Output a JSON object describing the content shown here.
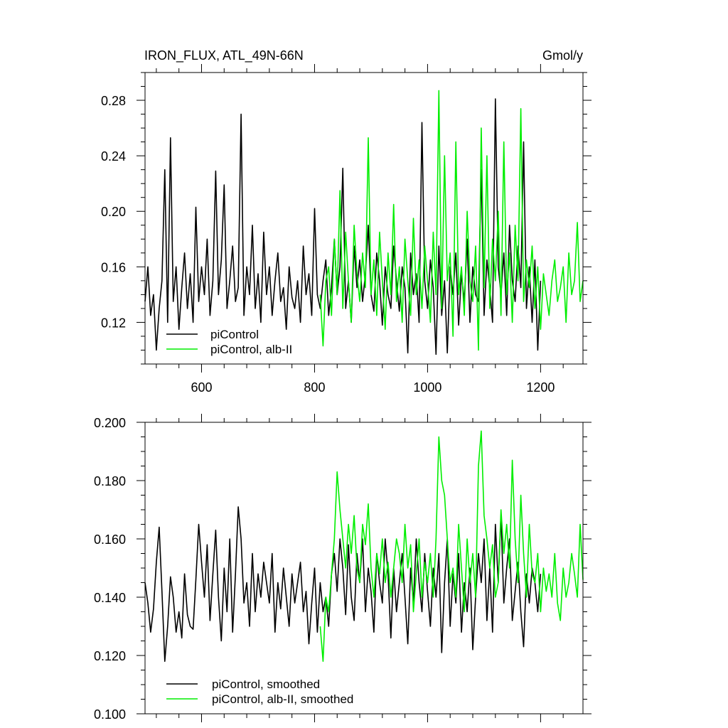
{
  "chart_data": [
    {
      "type": "line",
      "title": "IRON_FLUX, ATL_49N-66N",
      "unit": "Gmol/y",
      "xlim": [
        500,
        1275
      ],
      "ylim": [
        0.09,
        0.3
      ],
      "x_ticks": [
        600,
        800,
        1000,
        1200
      ],
      "x_tick_labels": [
        "600",
        "800",
        "1000",
        "1200"
      ],
      "y_ticks": [
        0.12,
        0.16,
        0.2,
        0.24,
        0.28
      ],
      "y_tick_labels": [
        "0.12",
        "0.16",
        "0.20",
        "0.24",
        "0.28"
      ],
      "legend_position": "bottom-left",
      "series": [
        {
          "name": "piControl",
          "color": "#000000",
          "x": [
            500,
            505,
            510,
            515,
            520,
            525,
            530,
            535,
            540,
            545,
            550,
            555,
            560,
            565,
            570,
            575,
            580,
            585,
            590,
            595,
            600,
            605,
            610,
            615,
            620,
            625,
            630,
            635,
            640,
            645,
            650,
            655,
            660,
            665,
            670,
            675,
            680,
            685,
            690,
            695,
            700,
            705,
            710,
            715,
            720,
            725,
            730,
            735,
            740,
            745,
            750,
            755,
            760,
            765,
            770,
            775,
            780,
            785,
            790,
            795,
            800,
            805,
            810,
            815,
            820,
            825,
            830,
            835,
            840,
            845,
            850,
            855,
            860,
            865,
            870,
            875,
            880,
            885,
            890,
            895,
            900,
            905,
            910,
            915,
            920,
            925,
            930,
            935,
            940,
            945,
            950,
            955,
            960,
            965,
            970,
            975,
            980,
            985,
            990,
            995,
            1000,
            1005,
            1010,
            1015,
            1020,
            1025,
            1030,
            1035,
            1040,
            1045,
            1050,
            1055,
            1060,
            1065,
            1070,
            1075,
            1080,
            1085,
            1090,
            1095,
            1100,
            1105,
            1110,
            1115,
            1120,
            1125,
            1130,
            1135,
            1140,
            1145,
            1150,
            1155,
            1160,
            1165,
            1170,
            1175,
            1180,
            1185,
            1190,
            1195,
            1200
          ],
          "values": [
            0.135,
            0.16,
            0.125,
            0.14,
            0.1,
            0.13,
            0.15,
            0.23,
            0.12,
            0.253,
            0.135,
            0.16,
            0.115,
            0.145,
            0.17,
            0.13,
            0.155,
            0.12,
            0.203,
            0.135,
            0.16,
            0.14,
            0.18,
            0.125,
            0.15,
            0.229,
            0.14,
            0.165,
            0.219,
            0.13,
            0.15,
            0.175,
            0.135,
            0.145,
            0.27,
            0.125,
            0.16,
            0.14,
            0.19,
            0.13,
            0.155,
            0.12,
            0.185,
            0.14,
            0.16,
            0.125,
            0.15,
            0.17,
            0.135,
            0.145,
            0.115,
            0.16,
            0.138,
            0.13,
            0.15,
            0.12,
            0.175,
            0.14,
            0.155,
            0.125,
            0.202,
            0.14,
            0.13,
            0.15,
            0.165,
            0.125,
            0.145,
            0.18,
            0.14,
            0.16,
            0.231,
            0.13,
            0.15,
            0.12,
            0.175,
            0.145,
            0.165,
            0.135,
            0.155,
            0.19,
            0.14,
            0.128,
            0.17,
            0.15,
            0.118,
            0.16,
            0.14,
            0.13,
            0.175,
            0.15,
            0.128,
            0.16,
            0.145,
            0.098,
            0.17,
            0.14,
            0.155,
            0.12,
            0.264,
            0.15,
            0.13,
            0.165,
            0.145,
            0.097,
            0.175,
            0.125,
            0.15,
            0.098,
            0.16,
            0.14,
            0.17,
            0.118,
            0.155,
            0.135,
            0.18,
            0.12,
            0.16,
            0.14,
            0.135,
            0.23,
            0.125,
            0.165,
            0.145,
            0.12,
            0.281,
            0.16,
            0.14,
            0.17,
            0.125,
            0.19,
            0.15,
            0.135,
            0.175,
            0.145,
            0.25,
            0.13,
            0.16,
            0.12,
            0.165,
            0.1,
            0.15
          ]
        },
        {
          "name": "piControl, alb-II",
          "color": "#00ee00",
          "x": [
            810,
            815,
            820,
            825,
            830,
            835,
            840,
            845,
            850,
            855,
            860,
            865,
            870,
            875,
            880,
            885,
            890,
            895,
            900,
            905,
            910,
            915,
            920,
            925,
            930,
            935,
            940,
            945,
            950,
            955,
            960,
            965,
            970,
            975,
            980,
            985,
            990,
            995,
            1000,
            1005,
            1010,
            1015,
            1020,
            1025,
            1030,
            1035,
            1040,
            1045,
            1050,
            1055,
            1060,
            1065,
            1070,
            1075,
            1080,
            1085,
            1090,
            1095,
            1100,
            1105,
            1110,
            1115,
            1120,
            1125,
            1130,
            1135,
            1140,
            1145,
            1150,
            1155,
            1160,
            1165,
            1170,
            1175,
            1180,
            1185,
            1190,
            1195,
            1200,
            1205,
            1210,
            1215,
            1220,
            1225,
            1230,
            1235,
            1240,
            1245,
            1250,
            1255,
            1260,
            1265,
            1270,
            1275
          ],
          "values": [
            0.14,
            0.103,
            0.15,
            0.16,
            0.125,
            0.18,
            0.14,
            0.215,
            0.13,
            0.185,
            0.15,
            0.12,
            0.19,
            0.155,
            0.135,
            0.17,
            0.145,
            0.253,
            0.14,
            0.165,
            0.125,
            0.185,
            0.15,
            0.115,
            0.17,
            0.14,
            0.205,
            0.135,
            0.16,
            0.12,
            0.18,
            0.15,
            0.125,
            0.195,
            0.14,
            0.165,
            0.13,
            0.175,
            0.15,
            0.12,
            0.185,
            0.14,
            0.287,
            0.13,
            0.24,
            0.15,
            0.17,
            0.11,
            0.25,
            0.14,
            0.16,
            0.125,
            0.2,
            0.15,
            0.135,
            0.175,
            0.1,
            0.26,
            0.145,
            0.24,
            0.13,
            0.18,
            0.15,
            0.2,
            0.125,
            0.25,
            0.14,
            0.17,
            0.12,
            0.19,
            0.15,
            0.274,
            0.135,
            0.165,
            0.145,
            0.175,
            0.13,
            0.16,
            0.115,
            0.155,
            0.14,
            0.125,
            0.15,
            0.165,
            0.135,
            0.145,
            0.16,
            0.12,
            0.17,
            0.14,
            0.15,
            0.192,
            0.135,
            0.15
          ]
        }
      ]
    },
    {
      "type": "line",
      "title": "",
      "xlim": [
        500,
        1275
      ],
      "ylim": [
        0.1,
        0.2
      ],
      "x_ticks": [
        600,
        800,
        1000,
        1200
      ],
      "x_tick_labels": [],
      "y_ticks": [
        0.1,
        0.12,
        0.14,
        0.16,
        0.18,
        0.2
      ],
      "y_tick_labels": [
        "0.100",
        "0.120",
        "0.140",
        "0.160",
        "0.180",
        "0.200"
      ],
      "legend_position": "bottom-left",
      "series": [
        {
          "name": "piControl, smoothed",
          "color": "#000000",
          "x": [
            500,
            505,
            510,
            515,
            520,
            525,
            530,
            535,
            540,
            545,
            550,
            555,
            560,
            565,
            570,
            575,
            580,
            585,
            590,
            595,
            600,
            605,
            610,
            615,
            620,
            625,
            630,
            635,
            640,
            645,
            650,
            655,
            660,
            665,
            670,
            675,
            680,
            685,
            690,
            695,
            700,
            705,
            710,
            715,
            720,
            725,
            730,
            735,
            740,
            745,
            750,
            755,
            760,
            765,
            770,
            775,
            780,
            785,
            790,
            795,
            800,
            805,
            810,
            815,
            820,
            825,
            830,
            835,
            840,
            845,
            850,
            855,
            860,
            865,
            870,
            875,
            880,
            885,
            890,
            895,
            900,
            905,
            910,
            915,
            920,
            925,
            930,
            935,
            940,
            945,
            950,
            955,
            960,
            965,
            970,
            975,
            980,
            985,
            990,
            995,
            1000,
            1005,
            1010,
            1015,
            1020,
            1025,
            1030,
            1035,
            1040,
            1045,
            1050,
            1055,
            1060,
            1065,
            1070,
            1075,
            1080,
            1085,
            1090,
            1095,
            1100,
            1105,
            1110,
            1115,
            1120,
            1125,
            1130,
            1135,
            1140,
            1145,
            1150,
            1155,
            1160,
            1165,
            1170,
            1175,
            1180,
            1185,
            1190,
            1195,
            1200
          ],
          "values": [
            0.145,
            0.138,
            0.128,
            0.136,
            0.152,
            0.164,
            0.142,
            0.118,
            0.13,
            0.147,
            0.14,
            0.128,
            0.135,
            0.126,
            0.148,
            0.134,
            0.13,
            0.129,
            0.146,
            0.165,
            0.152,
            0.14,
            0.158,
            0.132,
            0.148,
            0.163,
            0.14,
            0.125,
            0.15,
            0.135,
            0.16,
            0.128,
            0.148,
            0.171,
            0.16,
            0.138,
            0.145,
            0.13,
            0.155,
            0.135,
            0.148,
            0.14,
            0.152,
            0.145,
            0.138,
            0.155,
            0.128,
            0.145,
            0.136,
            0.15,
            0.14,
            0.13,
            0.148,
            0.138,
            0.145,
            0.152,
            0.135,
            0.142,
            0.124,
            0.138,
            0.15,
            0.128,
            0.145,
            0.135,
            0.14,
            0.13,
            0.148,
            0.155,
            0.142,
            0.16,
            0.15,
            0.134,
            0.158,
            0.14,
            0.132,
            0.155,
            0.145,
            0.16,
            0.135,
            0.15,
            0.142,
            0.128,
            0.155,
            0.145,
            0.138,
            0.16,
            0.148,
            0.126,
            0.15,
            0.135,
            0.145,
            0.155,
            0.14,
            0.124,
            0.15,
            0.138,
            0.16,
            0.145,
            0.135,
            0.155,
            0.142,
            0.13,
            0.15,
            0.14,
            0.155,
            0.121,
            0.145,
            0.16,
            0.13,
            0.148,
            0.138,
            0.155,
            0.128,
            0.145,
            0.135,
            0.15,
            0.122,
            0.14,
            0.155,
            0.145,
            0.16,
            0.132,
            0.15,
            0.128,
            0.165,
            0.145,
            0.168,
            0.138,
            0.15,
            0.16,
            0.132,
            0.142,
            0.152,
            0.135,
            0.123,
            0.148,
            0.138,
            0.15,
            0.145,
            0.135,
            0.148
          ]
        },
        {
          "name": "piControl, alb-II, smoothed",
          "color": "#00ee00",
          "x": [
            810,
            815,
            820,
            825,
            830,
            835,
            840,
            845,
            850,
            855,
            860,
            865,
            870,
            875,
            880,
            885,
            890,
            895,
            900,
            905,
            910,
            915,
            920,
            925,
            930,
            935,
            940,
            945,
            950,
            955,
            960,
            965,
            970,
            975,
            980,
            985,
            990,
            995,
            1000,
            1005,
            1010,
            1015,
            1020,
            1025,
            1030,
            1035,
            1040,
            1045,
            1050,
            1055,
            1060,
            1065,
            1070,
            1075,
            1080,
            1085,
            1090,
            1095,
            1100,
            1105,
            1110,
            1115,
            1120,
            1125,
            1130,
            1135,
            1140,
            1145,
            1150,
            1155,
            1160,
            1165,
            1170,
            1175,
            1180,
            1185,
            1190,
            1195,
            1200,
            1205,
            1210,
            1215,
            1220,
            1225,
            1230,
            1235,
            1240,
            1245,
            1250,
            1255,
            1260,
            1265,
            1270,
            1275
          ],
          "values": [
            0.13,
            0.118,
            0.14,
            0.135,
            0.148,
            0.16,
            0.183,
            0.17,
            0.16,
            0.15,
            0.165,
            0.155,
            0.168,
            0.15,
            0.145,
            0.165,
            0.158,
            0.172,
            0.15,
            0.14,
            0.155,
            0.148,
            0.16,
            0.145,
            0.152,
            0.14,
            0.15,
            0.16,
            0.155,
            0.145,
            0.165,
            0.15,
            0.158,
            0.135,
            0.148,
            0.16,
            0.14,
            0.152,
            0.145,
            0.155,
            0.14,
            0.16,
            0.195,
            0.18,
            0.175,
            0.16,
            0.145,
            0.15,
            0.14,
            0.165,
            0.15,
            0.135,
            0.16,
            0.145,
            0.155,
            0.14,
            0.185,
            0.197,
            0.168,
            0.16,
            0.15,
            0.158,
            0.14,
            0.145,
            0.17,
            0.155,
            0.165,
            0.15,
            0.187,
            0.16,
            0.145,
            0.175,
            0.155,
            0.14,
            0.165,
            0.148,
            0.145,
            0.155,
            0.135,
            0.15,
            0.142,
            0.148,
            0.14,
            0.155,
            0.138,
            0.132,
            0.15,
            0.14,
            0.145,
            0.155,
            0.148,
            0.14,
            0.165,
            0.146
          ]
        }
      ]
    }
  ]
}
